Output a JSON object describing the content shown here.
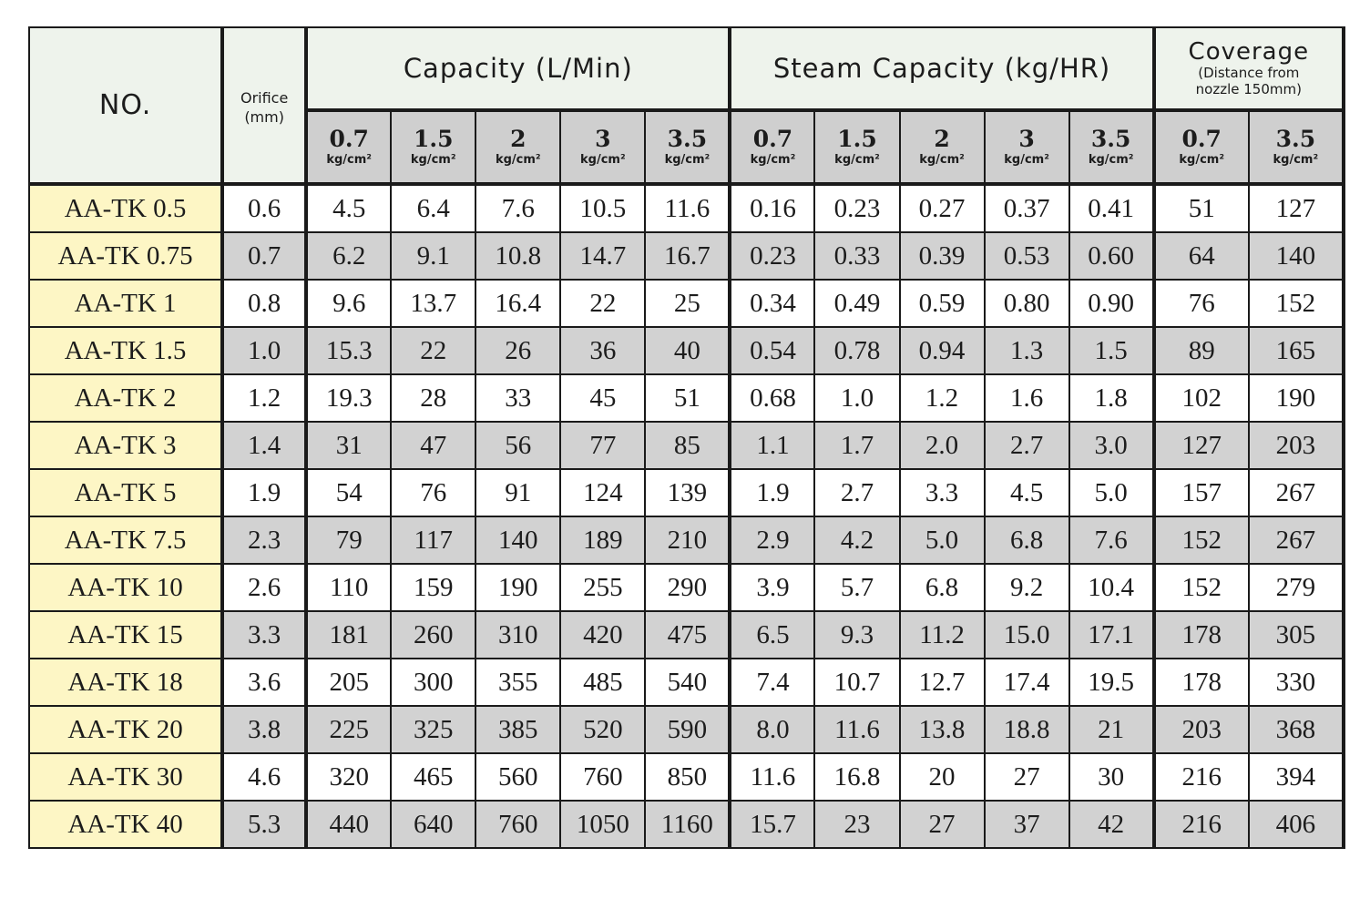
{
  "headers": {
    "no": "NO.",
    "orifice_line1": "Orifice",
    "orifice_line2": "(mm)",
    "capacity": "Capacity (L/Min)",
    "steam_capacity": "Steam Capacity (kg/HR)",
    "coverage_title": "Coverage",
    "coverage_note_line1": "(Distance from",
    "coverage_note_line2": "nozzle 150mm)"
  },
  "pressures": {
    "unit": "kg/cm²",
    "capacity": [
      "0.7",
      "1.5",
      "2",
      "3",
      "3.5"
    ],
    "steam": [
      "0.7",
      "1.5",
      "2",
      "3",
      "3.5"
    ],
    "coverage": [
      "0.7",
      "3.5"
    ]
  },
  "rows": [
    {
      "model": "AA-TK 0.5",
      "orifice": "0.6",
      "capacity": [
        "4.5",
        "6.4",
        "7.6",
        "10.5",
        "11.6"
      ],
      "steam": [
        "0.16",
        "0.23",
        "0.27",
        "0.37",
        "0.41"
      ],
      "coverage": [
        "51",
        "127"
      ]
    },
    {
      "model": "AA-TK 0.75",
      "orifice": "0.7",
      "capacity": [
        "6.2",
        "9.1",
        "10.8",
        "14.7",
        "16.7"
      ],
      "steam": [
        "0.23",
        "0.33",
        "0.39",
        "0.53",
        "0.60"
      ],
      "coverage": [
        "64",
        "140"
      ]
    },
    {
      "model": "AA-TK 1",
      "orifice": "0.8",
      "capacity": [
        "9.6",
        "13.7",
        "16.4",
        "22",
        "25"
      ],
      "steam": [
        "0.34",
        "0.49",
        "0.59",
        "0.80",
        "0.90"
      ],
      "coverage": [
        "76",
        "152"
      ]
    },
    {
      "model": "AA-TK 1.5",
      "orifice": "1.0",
      "capacity": [
        "15.3",
        "22",
        "26",
        "36",
        "40"
      ],
      "steam": [
        "0.54",
        "0.78",
        "0.94",
        "1.3",
        "1.5"
      ],
      "coverage": [
        "89",
        "165"
      ]
    },
    {
      "model": "AA-TK 2",
      "orifice": "1.2",
      "capacity": [
        "19.3",
        "28",
        "33",
        "45",
        "51"
      ],
      "steam": [
        "0.68",
        "1.0",
        "1.2",
        "1.6",
        "1.8"
      ],
      "coverage": [
        "102",
        "190"
      ]
    },
    {
      "model": "AA-TK 3",
      "orifice": "1.4",
      "capacity": [
        "31",
        "47",
        "56",
        "77",
        "85"
      ],
      "steam": [
        "1.1",
        "1.7",
        "2.0",
        "2.7",
        "3.0"
      ],
      "coverage": [
        "127",
        "203"
      ]
    },
    {
      "model": "AA-TK 5",
      "orifice": "1.9",
      "capacity": [
        "54",
        "76",
        "91",
        "124",
        "139"
      ],
      "steam": [
        "1.9",
        "2.7",
        "3.3",
        "4.5",
        "5.0"
      ],
      "coverage": [
        "157",
        "267"
      ]
    },
    {
      "model": "AA-TK 7.5",
      "orifice": "2.3",
      "capacity": [
        "79",
        "117",
        "140",
        "189",
        "210"
      ],
      "steam": [
        "2.9",
        "4.2",
        "5.0",
        "6.8",
        "7.6"
      ],
      "coverage": [
        "152",
        "267"
      ]
    },
    {
      "model": "AA-TK 10",
      "orifice": "2.6",
      "capacity": [
        "110",
        "159",
        "190",
        "255",
        "290"
      ],
      "steam": [
        "3.9",
        "5.7",
        "6.8",
        "9.2",
        "10.4"
      ],
      "coverage": [
        "152",
        "279"
      ]
    },
    {
      "model": "AA-TK 15",
      "orifice": "3.3",
      "capacity": [
        "181",
        "260",
        "310",
        "420",
        "475"
      ],
      "steam": [
        "6.5",
        "9.3",
        "11.2",
        "15.0",
        "17.1"
      ],
      "coverage": [
        "178",
        "305"
      ]
    },
    {
      "model": "AA-TK 18",
      "orifice": "3.6",
      "capacity": [
        "205",
        "300",
        "355",
        "485",
        "540"
      ],
      "steam": [
        "7.4",
        "10.7",
        "12.7",
        "17.4",
        "19.5"
      ],
      "coverage": [
        "178",
        "330"
      ]
    },
    {
      "model": "AA-TK 20",
      "orifice": "3.8",
      "capacity": [
        "225",
        "325",
        "385",
        "520",
        "590"
      ],
      "steam": [
        "8.0",
        "11.6",
        "13.8",
        "18.8",
        "21"
      ],
      "coverage": [
        "203",
        "368"
      ]
    },
    {
      "model": "AA-TK 30",
      "orifice": "4.6",
      "capacity": [
        "320",
        "465",
        "560",
        "760",
        "850"
      ],
      "steam": [
        "11.6",
        "16.8",
        "20",
        "27",
        "30"
      ],
      "coverage": [
        "216",
        "394"
      ]
    },
    {
      "model": "AA-TK 40",
      "orifice": "5.3",
      "capacity": [
        "440",
        "640",
        "760",
        "1050",
        "1160"
      ],
      "steam": [
        "15.7",
        "23",
        "27",
        "37",
        "42"
      ],
      "coverage": [
        "216",
        "406"
      ]
    }
  ]
}
